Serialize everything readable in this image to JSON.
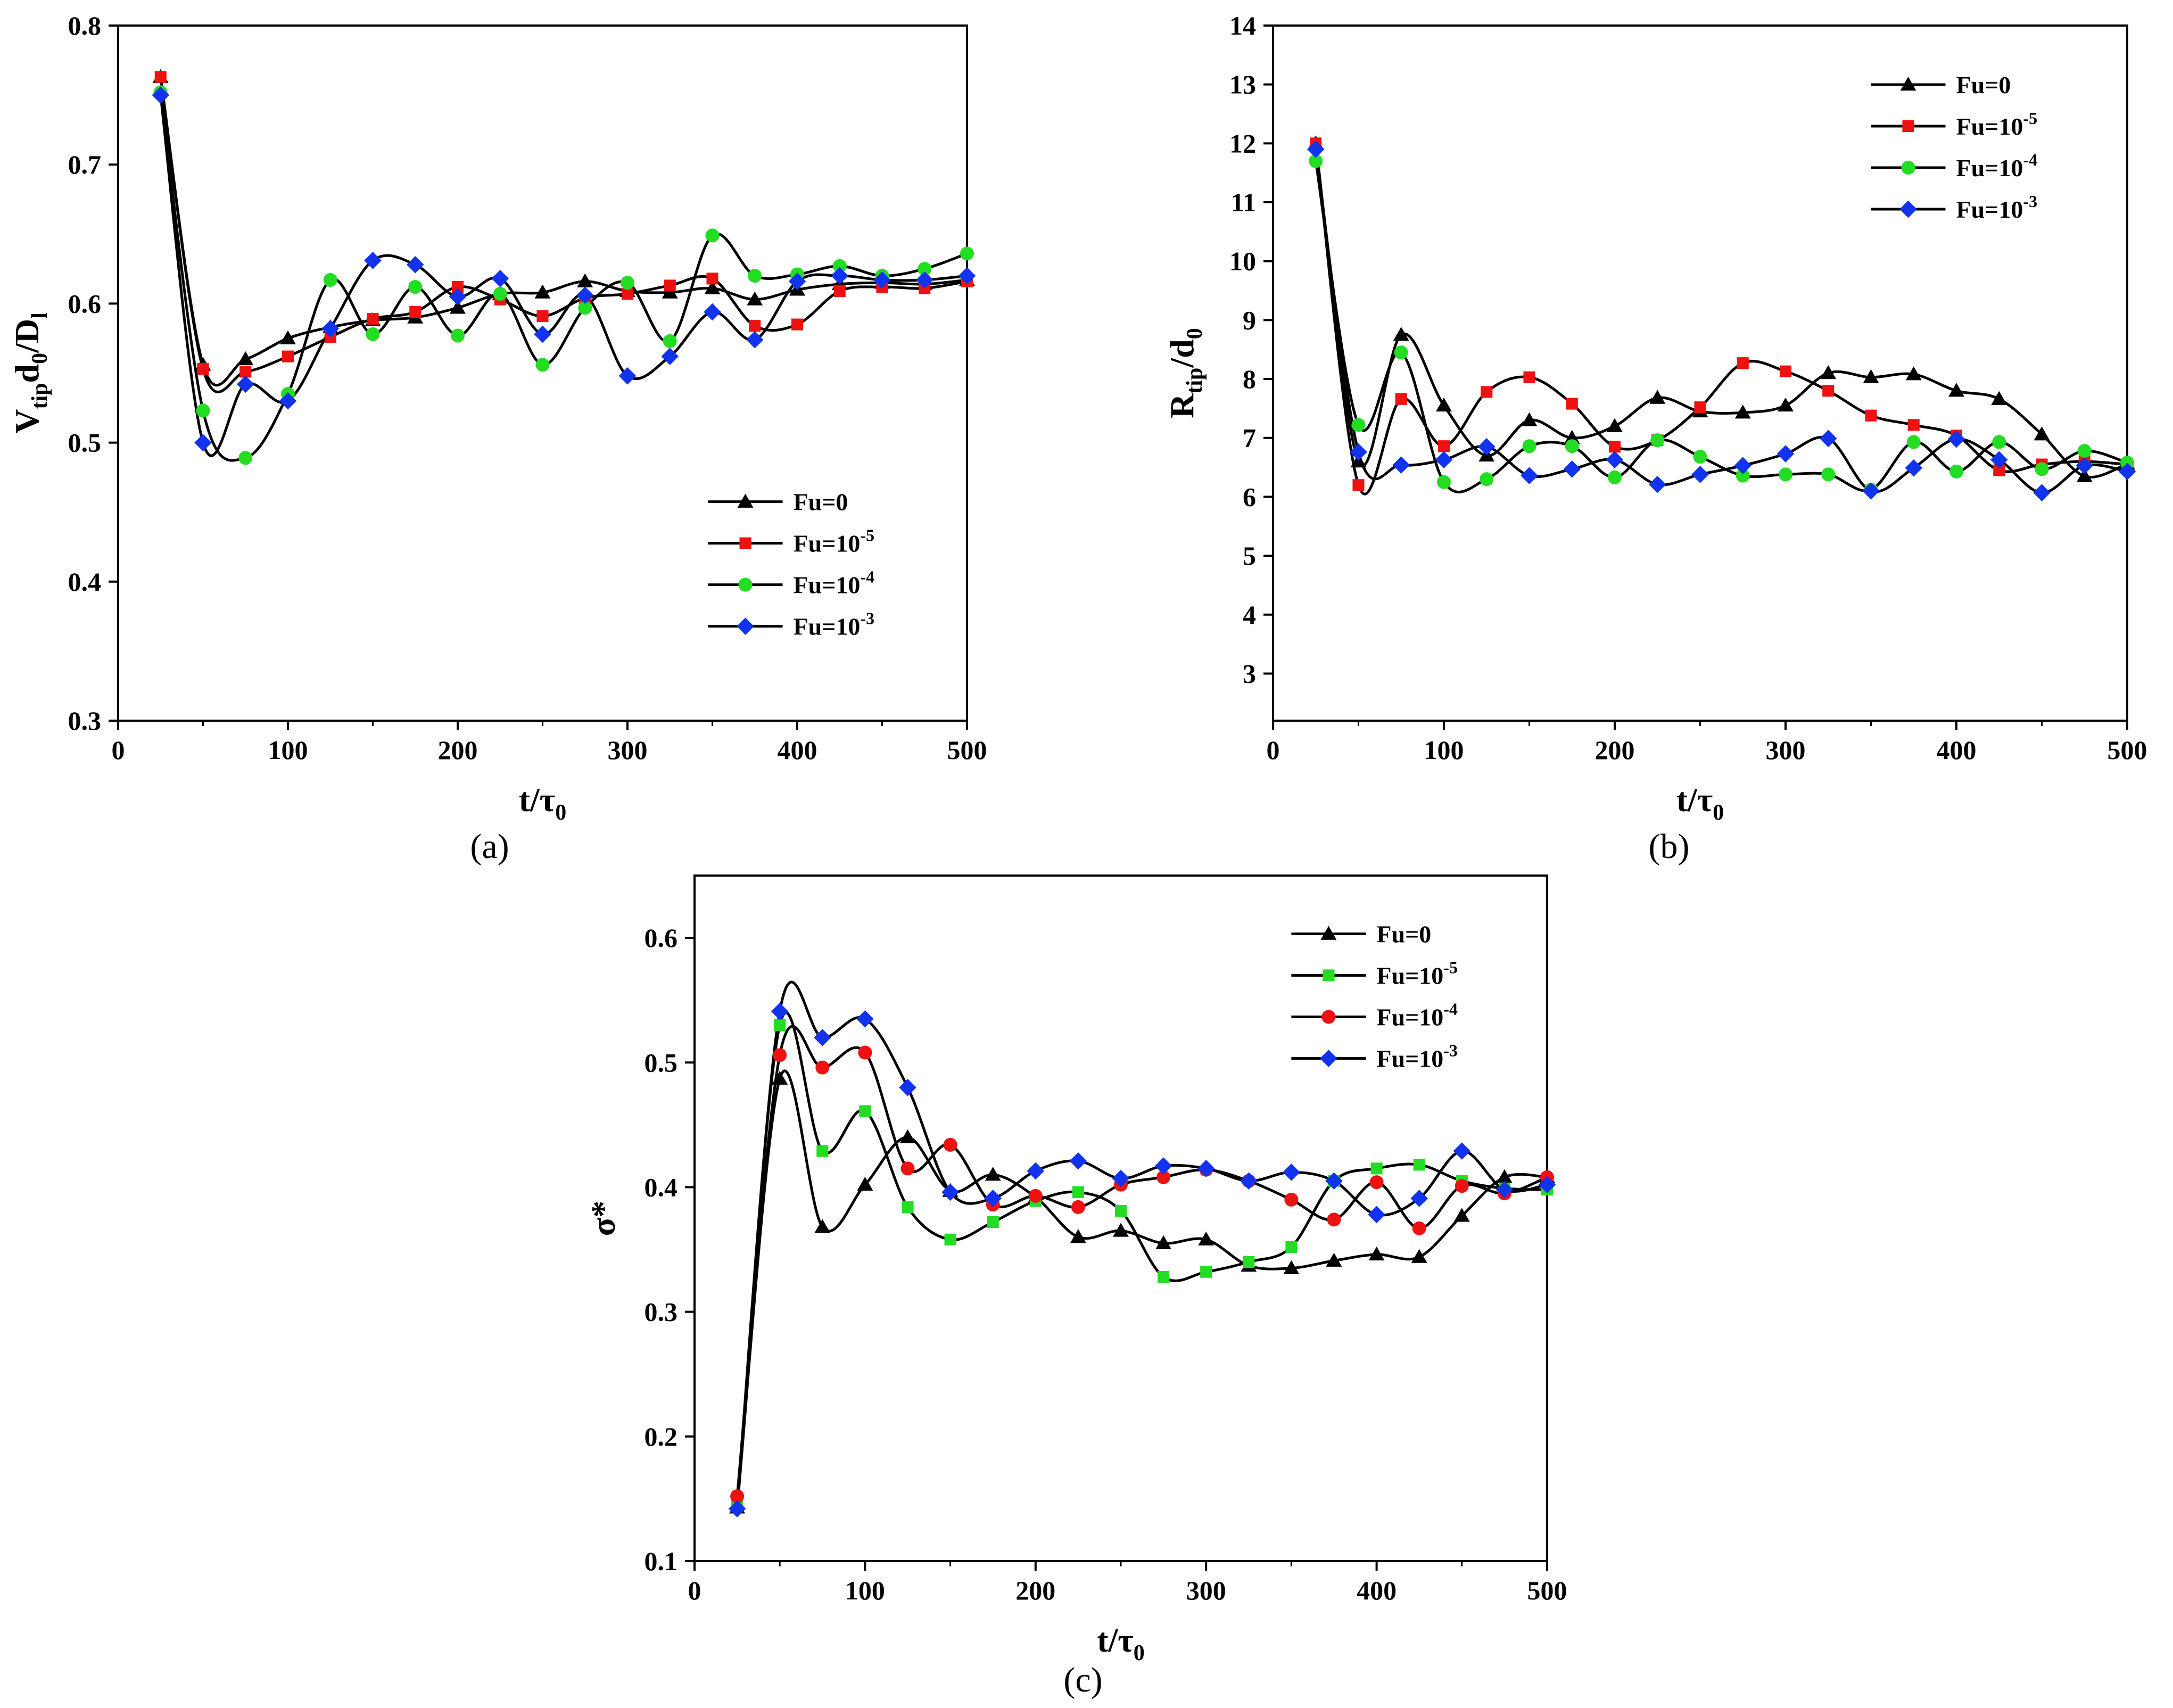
{
  "chart_data": [
    {
      "type": "line",
      "panel_label": "(a)",
      "ylabel_main": "V",
      "ylabel_sub1": "tip",
      "ylabel_mid": "d",
      "ylabel_sub2": "0",
      "ylabel_tail": "/D",
      "ylabel_sub3": "l",
      "xlabel_main": "t/τ",
      "xlabel_sub": "0",
      "xlim": [
        0,
        500
      ],
      "ylim": [
        0.3,
        0.8
      ],
      "xticks": [
        "0",
        "100",
        "200",
        "300",
        "400",
        "500"
      ],
      "yticks": [
        "0.3",
        "0.4",
        "0.5",
        "0.6",
        "0.7",
        "0.8"
      ],
      "legend_position": "bottom-right",
      "x": [
        25,
        50,
        75,
        100,
        125,
        150,
        175,
        200,
        225,
        250,
        275,
        300,
        325,
        350,
        375,
        400,
        425,
        450,
        475,
        500
      ],
      "series": [
        {
          "name_base": "Fu=0",
          "name_sup": "",
          "marker": "triangle",
          "color": "#000000",
          "values": [
            0.763,
            0.556,
            0.56,
            0.575,
            0.583,
            0.588,
            0.59,
            0.597,
            0.607,
            0.608,
            0.616,
            0.609,
            0.608,
            0.611,
            0.603,
            0.61,
            0.614,
            0.615,
            0.614,
            0.617
          ]
        },
        {
          "name_base": "Fu=10",
          "name_sup": "-5",
          "marker": "square",
          "color": "#ee1111",
          "values": [
            0.763,
            0.553,
            0.551,
            0.562,
            0.576,
            0.589,
            0.594,
            0.612,
            0.603,
            0.591,
            0.604,
            0.607,
            0.613,
            0.618,
            0.584,
            0.585,
            0.609,
            0.612,
            0.611,
            0.616
          ]
        },
        {
          "name_base": "Fu=10",
          "name_sup": "-4",
          "marker": "circle",
          "color": "#22dd22",
          "values": [
            0.752,
            0.523,
            0.489,
            0.535,
            0.617,
            0.578,
            0.612,
            0.577,
            0.607,
            0.556,
            0.597,
            0.615,
            0.573,
            0.649,
            0.62,
            0.621,
            0.627,
            0.62,
            0.625,
            0.636
          ]
        },
        {
          "name_base": "Fu=10",
          "name_sup": "-3",
          "marker": "diamond",
          "color": "#1133ee",
          "values": [
            0.75,
            0.5,
            0.542,
            0.53,
            0.582,
            0.631,
            0.628,
            0.605,
            0.618,
            0.578,
            0.606,
            0.548,
            0.562,
            0.594,
            0.574,
            0.616,
            0.62,
            0.617,
            0.617,
            0.62
          ]
        }
      ]
    },
    {
      "type": "line",
      "panel_label": "(b)",
      "ylabel_main": "R",
      "ylabel_sub1": "tip",
      "ylabel_mid": "/d",
      "ylabel_sub2": "0",
      "ylabel_tail": "",
      "ylabel_sub3": "",
      "xlabel_main": "t/τ",
      "xlabel_sub": "0",
      "xlim": [
        0,
        500
      ],
      "ylim": [
        2.2,
        14
      ],
      "xticks": [
        "0",
        "100",
        "200",
        "300",
        "400",
        "500"
      ],
      "yticks": [
        "3",
        "4",
        "5",
        "6",
        "7",
        "8",
        "9",
        "10",
        "11",
        "12",
        "13",
        "14"
      ],
      "legend_position": "top-right",
      "x": [
        25,
        50,
        75,
        100,
        125,
        150,
        175,
        200,
        225,
        250,
        275,
        300,
        325,
        350,
        375,
        400,
        425,
        450,
        475,
        500
      ],
      "series": [
        {
          "name_base": "Fu=0",
          "name_sup": "",
          "marker": "triangle",
          "color": "#000000",
          "values": [
            12.0,
            6.6,
            8.75,
            7.55,
            6.7,
            7.3,
            7.0,
            7.2,
            7.68,
            7.45,
            7.43,
            7.55,
            8.1,
            8.03,
            8.08,
            7.8,
            7.66,
            7.06,
            6.35,
            6.56
          ]
        },
        {
          "name_base": "Fu=10",
          "name_sup": "-5",
          "marker": "square",
          "color": "#ee1111",
          "values": [
            12.0,
            6.2,
            7.66,
            6.86,
            7.78,
            8.03,
            7.58,
            6.85,
            6.96,
            7.52,
            8.27,
            8.13,
            7.8,
            7.38,
            7.22,
            7.04,
            6.45,
            6.55,
            6.6,
            6.55
          ]
        },
        {
          "name_base": "Fu=10",
          "name_sup": "-4",
          "marker": "circle",
          "color": "#22dd22",
          "values": [
            11.7,
            7.22,
            8.45,
            6.25,
            6.3,
            6.86,
            6.86,
            6.33,
            6.96,
            6.68,
            6.36,
            6.38,
            6.38,
            6.12,
            6.93,
            6.43,
            6.93,
            6.47,
            6.78,
            6.58
          ]
        },
        {
          "name_base": "Fu=10",
          "name_sup": "-3",
          "marker": "diamond",
          "color": "#1133ee",
          "values": [
            11.9,
            6.76,
            6.54,
            6.63,
            6.85,
            6.36,
            6.47,
            6.63,
            6.21,
            6.38,
            6.53,
            6.73,
            6.99,
            6.1,
            6.49,
            6.98,
            6.63,
            6.07,
            6.53,
            6.43
          ]
        }
      ]
    },
    {
      "type": "line",
      "panel_label": "(c)",
      "ylabel_main": "σ*",
      "ylabel_sub1": "",
      "ylabel_mid": "",
      "ylabel_sub2": "",
      "ylabel_tail": "",
      "ylabel_sub3": "",
      "xlabel_main": "t/τ",
      "xlabel_sub": "0",
      "xlim": [
        0,
        500
      ],
      "ylim": [
        0.1,
        0.65
      ],
      "xticks": [
        "0",
        "100",
        "200",
        "300",
        "400",
        "500"
      ],
      "yticks": [
        "0.1",
        "0.2",
        "0.3",
        "0.4",
        "0.5",
        "0.6"
      ],
      "legend_position": "top-right",
      "x": [
        25,
        50,
        75,
        100,
        125,
        150,
        175,
        200,
        225,
        250,
        275,
        300,
        325,
        350,
        375,
        400,
        425,
        450,
        475,
        500
      ],
      "series": [
        {
          "name_base": "Fu=0",
          "name_sup": "",
          "marker": "triangle",
          "color": "#000000",
          "values": [
            0.143,
            0.487,
            0.368,
            0.402,
            0.44,
            0.397,
            0.41,
            0.392,
            0.36,
            0.365,
            0.355,
            0.358,
            0.337,
            0.335,
            0.341,
            0.346,
            0.344,
            0.377,
            0.408,
            0.408
          ]
        },
        {
          "name_base": "Fu=10",
          "name_sup": "-5",
          "marker": "square",
          "color": "#22dd22",
          "values": [
            0.145,
            0.53,
            0.429,
            0.461,
            0.384,
            0.358,
            0.372,
            0.389,
            0.396,
            0.381,
            0.328,
            0.332,
            0.34,
            0.352,
            0.405,
            0.415,
            0.418,
            0.405,
            0.399,
            0.398
          ]
        },
        {
          "name_base": "Fu=10",
          "name_sup": "-4",
          "marker": "circle",
          "color": "#ee1111",
          "values": [
            0.152,
            0.506,
            0.496,
            0.508,
            0.415,
            0.434,
            0.386,
            0.393,
            0.384,
            0.402,
            0.408,
            0.414,
            0.405,
            0.39,
            0.374,
            0.404,
            0.367,
            0.401,
            0.395,
            0.408
          ]
        },
        {
          "name_base": "Fu=10",
          "name_sup": "-3",
          "marker": "diamond",
          "color": "#1133ee",
          "values": [
            0.142,
            0.541,
            0.52,
            0.535,
            0.48,
            0.396,
            0.391,
            0.413,
            0.421,
            0.407,
            0.417,
            0.415,
            0.405,
            0.412,
            0.405,
            0.378,
            0.391,
            0.429,
            0.398,
            0.402
          ]
        }
      ]
    }
  ]
}
